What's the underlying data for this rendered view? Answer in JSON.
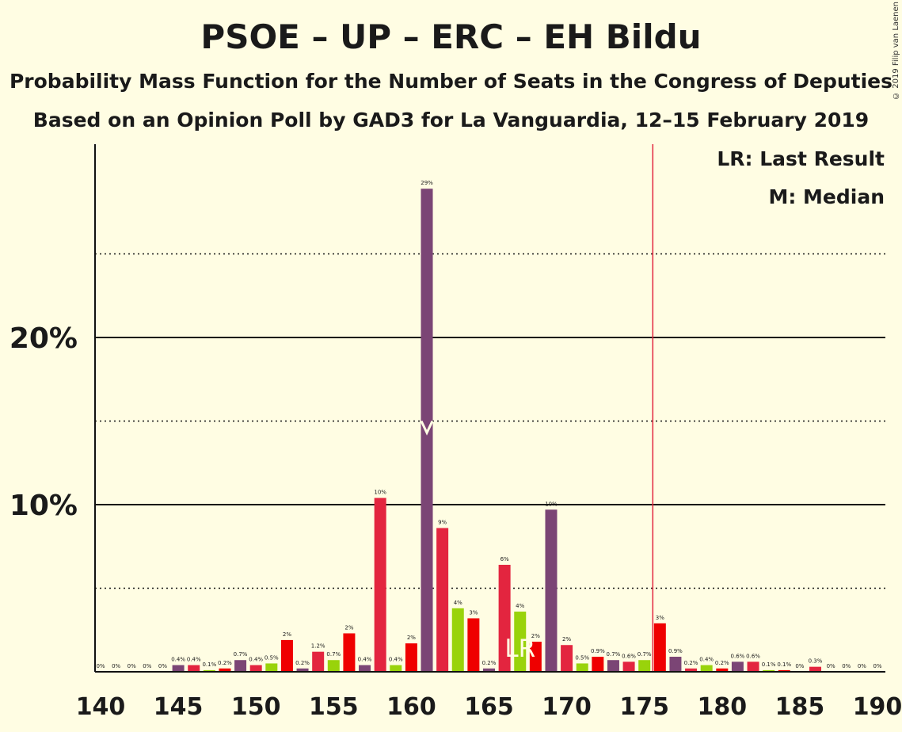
{
  "title": "PSOE – UP – ERC – EH Bildu",
  "subtitle": "Probability Mass Function for the Number of Seats in the Congress of Deputies",
  "subtitle2": "Based on an Opinion Poll by GAD3 for La Vanguardia, 12–15 February 2019",
  "copyright": "© 2019 Filip van Laenen",
  "legend": {
    "lr": "LR: Last Result",
    "m": "M: Median"
  },
  "markers": {
    "lr_label": "LR",
    "lr_seat": 167,
    "median_seat": 161,
    "majority_seat": 176
  },
  "colors": {
    "purple": "#7b4575",
    "red": "#e3253f",
    "green": "#99d30b",
    "brightred": "#ef0000",
    "majority_line": "#e3253f"
  },
  "chart_data": {
    "type": "bar",
    "xlim": [
      140,
      190
    ],
    "ylim": [
      0,
      30
    ],
    "x_ticks": [
      "140",
      "145",
      "150",
      "155",
      "160",
      "165",
      "170",
      "175",
      "180",
      "185",
      "190"
    ],
    "y_ticks": [
      "10%",
      "20%"
    ],
    "grid": "solid lines at 10% and 20%, dotted at 5%, 15% and 25%",
    "legend_placement": "top-right",
    "bars": [
      {
        "x": 140,
        "value": 0,
        "label": "0%",
        "color": "purple"
      },
      {
        "x": 141,
        "value": 0,
        "label": "0%",
        "color": "red"
      },
      {
        "x": 142,
        "value": 0,
        "label": "0%",
        "color": "green"
      },
      {
        "x": 143,
        "value": 0,
        "label": "0%",
        "color": "brightred"
      },
      {
        "x": 144,
        "value": 0,
        "label": "0%",
        "color": "purple"
      },
      {
        "x": 145,
        "value": 0.4,
        "label": "0.4%",
        "color": "purple"
      },
      {
        "x": 146,
        "value": 0.4,
        "label": "0.4%",
        "color": "red"
      },
      {
        "x": 147,
        "value": 0.1,
        "label": "0.1%",
        "color": "green"
      },
      {
        "x": 148,
        "value": 0.2,
        "label": "0.2%",
        "color": "brightred"
      },
      {
        "x": 149,
        "value": 0.7,
        "label": "0.7%",
        "color": "purple"
      },
      {
        "x": 150,
        "value": 0.4,
        "label": "0.4%",
        "color": "red"
      },
      {
        "x": 151,
        "value": 0.5,
        "label": "0.5%",
        "color": "green"
      },
      {
        "x": 152,
        "value": 1.9,
        "label": "2%",
        "color": "brightred"
      },
      {
        "x": 153,
        "value": 0.2,
        "label": "0.2%",
        "color": "purple"
      },
      {
        "x": 154,
        "value": 1.2,
        "label": "1.2%",
        "color": "red"
      },
      {
        "x": 155,
        "value": 0.7,
        "label": "0.7%",
        "color": "green"
      },
      {
        "x": 156,
        "value": 2.3,
        "label": "2%",
        "color": "brightred"
      },
      {
        "x": 157,
        "value": 0.4,
        "label": "0.4%",
        "color": "purple"
      },
      {
        "x": 158,
        "value": 10.4,
        "label": "10%",
        "color": "red"
      },
      {
        "x": 159,
        "value": 0.4,
        "label": "0.4%",
        "color": "green"
      },
      {
        "x": 160,
        "value": 1.7,
        "label": "2%",
        "color": "brightred"
      },
      {
        "x": 161,
        "value": 28.9,
        "label": "29%",
        "color": "purple"
      },
      {
        "x": 162,
        "value": 8.6,
        "label": "9%",
        "color": "red"
      },
      {
        "x": 163,
        "value": 3.8,
        "label": "4%",
        "color": "green"
      },
      {
        "x": 164,
        "value": 3.2,
        "label": "3%",
        "color": "brightred"
      },
      {
        "x": 165,
        "value": 0.2,
        "label": "0.2%",
        "color": "purple"
      },
      {
        "x": 166,
        "value": 6.4,
        "label": "6%",
        "color": "red"
      },
      {
        "x": 167,
        "value": 3.6,
        "label": "4%",
        "color": "green"
      },
      {
        "x": 168,
        "value": 1.8,
        "label": "2%",
        "color": "brightred"
      },
      {
        "x": 169,
        "value": 9.7,
        "label": "10%",
        "color": "purple"
      },
      {
        "x": 170,
        "value": 1.6,
        "label": "2%",
        "color": "red"
      },
      {
        "x": 171,
        "value": 0.5,
        "label": "0.5%",
        "color": "green"
      },
      {
        "x": 172,
        "value": 0.9,
        "label": "0.9%",
        "color": "brightred"
      },
      {
        "x": 173,
        "value": 0.7,
        "label": "0.7%",
        "color": "purple"
      },
      {
        "x": 174,
        "value": 0.6,
        "label": "0.6%",
        "color": "red"
      },
      {
        "x": 175,
        "value": 0.7,
        "label": "0.7%",
        "color": "green"
      },
      {
        "x": 176,
        "value": 2.9,
        "label": "3%",
        "color": "brightred"
      },
      {
        "x": 177,
        "value": 0.9,
        "label": "0.9%",
        "color": "purple"
      },
      {
        "x": 178,
        "value": 0.2,
        "label": "0.2%",
        "color": "red"
      },
      {
        "x": 179,
        "value": 0.4,
        "label": "0.4%",
        "color": "green"
      },
      {
        "x": 180,
        "value": 0.2,
        "label": "0.2%",
        "color": "brightred"
      },
      {
        "x": 181,
        "value": 0.6,
        "label": "0.6%",
        "color": "purple"
      },
      {
        "x": 182,
        "value": 0.6,
        "label": "0.6%",
        "color": "red"
      },
      {
        "x": 183,
        "value": 0.1,
        "label": "0.1%",
        "color": "green"
      },
      {
        "x": 184,
        "value": 0.1,
        "label": "0.1%",
        "color": "brightred"
      },
      {
        "x": 185,
        "value": 0,
        "label": "0%",
        "color": "purple"
      },
      {
        "x": 186,
        "value": 0.3,
        "label": "0.3%",
        "color": "red"
      },
      {
        "x": 187,
        "value": 0,
        "label": "0%",
        "color": "green"
      },
      {
        "x": 188,
        "value": 0,
        "label": "0%",
        "color": "brightred"
      },
      {
        "x": 189,
        "value": 0,
        "label": "0%",
        "color": "purple"
      },
      {
        "x": 190,
        "value": 0,
        "label": "0%",
        "color": "red"
      }
    ]
  }
}
